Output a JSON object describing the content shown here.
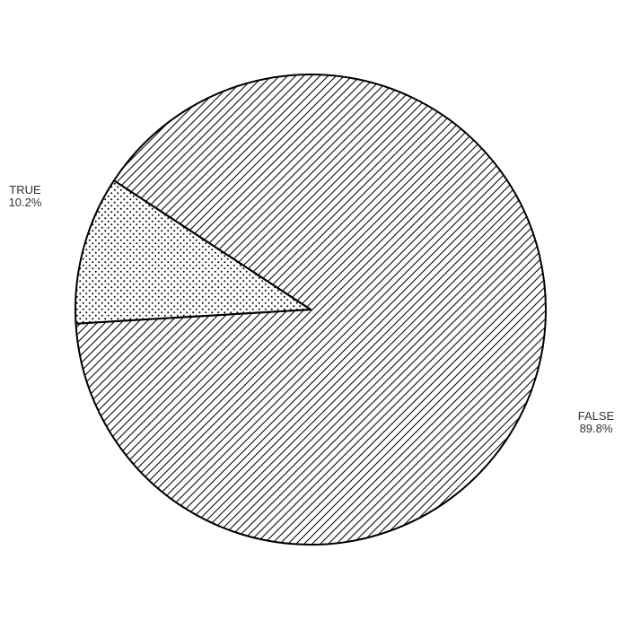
{
  "chart_data": {
    "type": "pie",
    "slices": [
      {
        "label": "TRUE",
        "value": 10.2,
        "percent_label": "10.2%",
        "pattern": "dots"
      },
      {
        "label": "FALSE",
        "value": 89.8,
        "percent_label": "89.8%",
        "pattern": "diagonal-hatch"
      }
    ],
    "start_direction": "left",
    "direction": "clockwise",
    "legend": "none",
    "colors": {
      "outline": "#000000",
      "fill": "#ffffff",
      "label_text": "#333333"
    }
  }
}
